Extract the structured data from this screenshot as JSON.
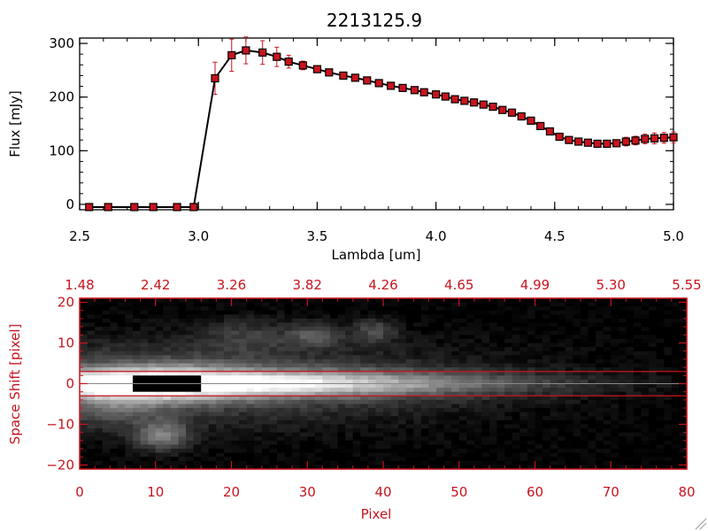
{
  "chart_data": [
    {
      "type": "line",
      "title": "2213125.9",
      "xlabel": "Lambda [um]",
      "ylabel": "Flux [mJy]",
      "xlim": [
        2.5,
        5.0
      ],
      "ylim": [
        -10,
        310
      ],
      "xticks": [
        2.5,
        3.0,
        3.5,
        4.0,
        4.5,
        5.0
      ],
      "xtick_labels": [
        "2.5",
        "3.0",
        "3.5",
        "4.0",
        "4.5",
        "5.0"
      ],
      "yticks": [
        0,
        100,
        200,
        300
      ],
      "ytick_labels": [
        "0",
        "100",
        "200",
        "300"
      ],
      "line_color": "#000000",
      "marker_color": "#c8141e",
      "errorbar_color": "#c8141e",
      "grid": false,
      "x": [
        2.54,
        2.62,
        2.73,
        2.81,
        2.91,
        2.98,
        3.07,
        3.14,
        3.2,
        3.27,
        3.33,
        3.38,
        3.44,
        3.5,
        3.55,
        3.61,
        3.66,
        3.71,
        3.76,
        3.81,
        3.86,
        3.91,
        3.95,
        4.0,
        4.04,
        4.08,
        4.12,
        4.16,
        4.2,
        4.24,
        4.28,
        4.32,
        4.36,
        4.4,
        4.44,
        4.48,
        4.52,
        4.56,
        4.6,
        4.64,
        4.68,
        4.72,
        4.76,
        4.8,
        4.84,
        4.88,
        4.92,
        4.96,
        5.0
      ],
      "y": [
        -5,
        -5,
        -5,
        -5,
        -5,
        -5,
        235,
        278,
        287,
        283,
        275,
        266,
        259,
        252,
        246,
        240,
        236,
        231,
        226,
        221,
        217,
        213,
        209,
        205,
        201,
        196,
        193,
        190,
        186,
        182,
        176,
        171,
        164,
        156,
        146,
        136,
        126,
        120,
        117,
        115,
        113,
        113,
        114,
        117,
        119,
        122,
        123,
        124,
        125
      ],
      "yerr": [
        0,
        0,
        0,
        0,
        0,
        0,
        30,
        30,
        25,
        22,
        18,
        12,
        8,
        5,
        4,
        4,
        3,
        3,
        3,
        3,
        3,
        3,
        3,
        3,
        3,
        3,
        3,
        3,
        3,
        3,
        4,
        4,
        4,
        4,
        4,
        4,
        4,
        4,
        4,
        4,
        4,
        5,
        6,
        8,
        8,
        9,
        10,
        10,
        10
      ]
    },
    {
      "type": "heatmap",
      "xlabel": "Pixel",
      "ylabel": "Space Shift [pixel]",
      "xlim": [
        0,
        80
      ],
      "ylim": [
        -21,
        21
      ],
      "xticks": [
        0,
        10,
        20,
        30,
        40,
        50,
        60,
        70,
        80
      ],
      "xtick_labels": [
        "0",
        "10",
        "20",
        "30",
        "40",
        "50",
        "60",
        "70",
        "80"
      ],
      "yticks": [
        -20,
        -10,
        0,
        10,
        20
      ],
      "ytick_labels": [
        "−20",
        "−10",
        "0",
        "10",
        "20"
      ],
      "top_axis_ticks": [
        0,
        10,
        20,
        30,
        40,
        50,
        60,
        70,
        80
      ],
      "top_axis_labels": [
        "1.48",
        "2.42",
        "3.26",
        "3.82",
        "4.26",
        "4.65",
        "4.99",
        "5.30",
        "5.55"
      ],
      "aperture_lines": [
        3,
        -3
      ],
      "center_line": 0,
      "axis_color": "#c8141e",
      "colormap": "grayscale"
    }
  ]
}
